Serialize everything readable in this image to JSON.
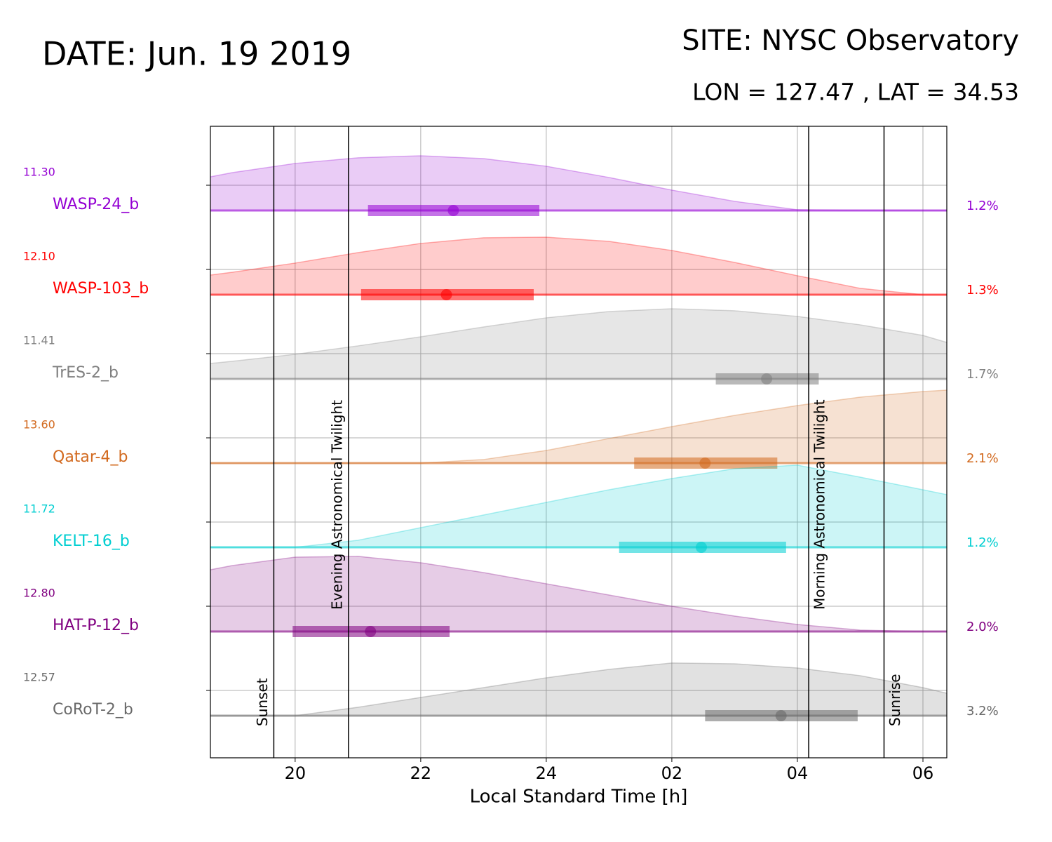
{
  "chart_data": {
    "type": "observability",
    "title": "DATE: Jun. 19 2019",
    "site": "SITE: NYSC Observatory",
    "coords": "LON = 127.47 , LAT = 34.53",
    "xlabel": "Local Standard Time [h]",
    "xlim": [
      18.65,
      30.38
    ],
    "xticks": [
      20,
      22,
      24,
      {
        "value": 26,
        "label": "02"
      },
      {
        "value": 28,
        "label": "04"
      },
      {
        "value": 30,
        "label": "06"
      }
    ],
    "grid": true,
    "altitude_lim": [
      0,
      90
    ],
    "x": [
      18.65,
      19,
      20,
      21,
      22,
      23,
      24,
      25,
      26,
      27,
      28,
      29,
      30,
      30.38
    ],
    "events": [
      {
        "name": "Sunset",
        "value": 19.66
      },
      {
        "name": "Evening Astronomical Twilight",
        "value": 20.85
      },
      {
        "name": "Morning Astronomical Twilight",
        "value": 28.18
      },
      {
        "name": "Sunrise",
        "value": 29.38
      }
    ],
    "series": [
      {
        "name": "WASP-24_b",
        "color": "#9400d3",
        "magnitude": "11.30",
        "depth": "1.2%",
        "transit": [
          21.16,
          22.52,
          23.89
        ],
        "altitude": [
          36,
          40.5,
          50.3,
          56.3,
          58.5,
          55.5,
          47.3,
          35.3,
          21.8,
          9.8,
          0.8,
          0,
          0,
          0
        ]
      },
      {
        "name": "WASP-103_b",
        "color": "#ff0000",
        "magnitude": "12.10",
        "depth": "1.3%",
        "transit": [
          21.05,
          22.41,
          23.8
        ],
        "altitude": [
          21,
          24,
          33.8,
          45,
          54.8,
          60.8,
          61.5,
          57,
          47.3,
          34.5,
          20.3,
          6.8,
          0,
          0
        ]
      },
      {
        "name": "TrES-2_b",
        "color": "#808080",
        "magnitude": "11.41",
        "depth": "1.7%",
        "transit": [
          26.7,
          27.51,
          28.34
        ],
        "altitude": [
          16.5,
          18.8,
          26.3,
          35.3,
          45,
          55.5,
          65.3,
          72,
          75,
          72.8,
          66.8,
          57.8,
          46.5,
          39
        ]
      },
      {
        "name": "Qatar-4_b",
        "color": "#d2691e",
        "magnitude": "13.60",
        "depth": "2.1%",
        "transit": [
          25.4,
          26.53,
          27.68
        ],
        "altitude": [
          0,
          0,
          0,
          0,
          0,
          3.8,
          13.5,
          26.3,
          39,
          51,
          61.5,
          70.5,
          76.5,
          78
        ]
      },
      {
        "name": "KELT-16_b",
        "color": "#00ced1",
        "magnitude": "11.72",
        "depth": "1.2%",
        "transit": [
          25.16,
          26.47,
          27.82
        ],
        "altitude": [
          0,
          0,
          0,
          7.5,
          21,
          34.5,
          48,
          61.5,
          73.5,
          84,
          87.8,
          75,
          61.5,
          56.3
        ]
      },
      {
        "name": "HAT-P-12_b",
        "color": "#800080",
        "magnitude": "12.80",
        "depth": "2.0%",
        "transit": [
          19.96,
          21.2,
          22.46
        ],
        "altitude": [
          66,
          70.5,
          79.5,
          80.3,
          73.5,
          63,
          51,
          39,
          27,
          16.5,
          7.5,
          1.5,
          0,
          0
        ]
      },
      {
        "name": "CoRoT-2_b",
        "color": "#696969",
        "magnitude": "12.57",
        "depth": "3.2%",
        "transit": [
          26.53,
          27.74,
          28.96
        ],
        "altitude": [
          0,
          0,
          0,
          9,
          19.5,
          30,
          40.5,
          49.5,
          56.3,
          55.5,
          51,
          42.8,
          30,
          24
        ]
      }
    ]
  }
}
